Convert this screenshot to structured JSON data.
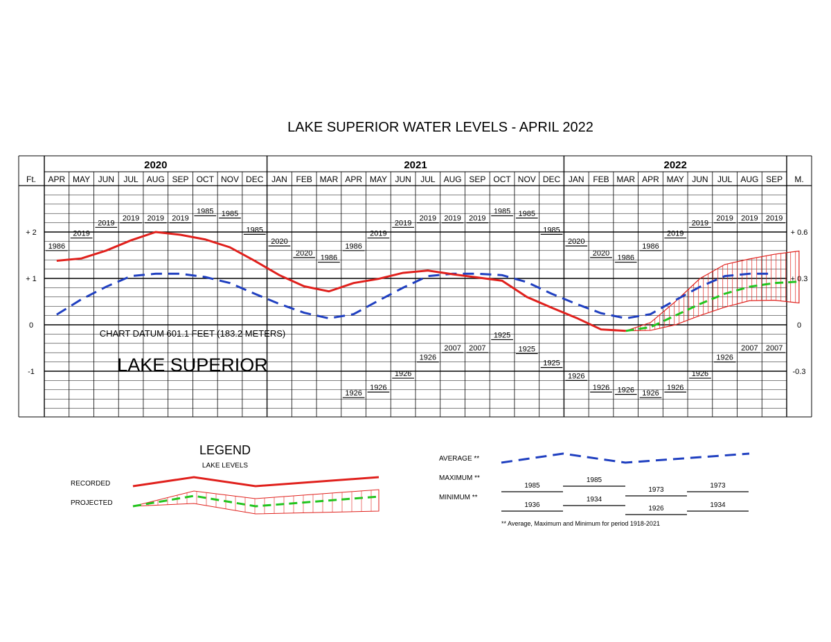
{
  "title": "LAKE SUPERIOR WATER LEVELS - APRIL 2022",
  "chart_data": {
    "type": "line",
    "title": "LAKE SUPERIOR WATER LEVELS - APRIL 2022",
    "years": [
      {
        "label": "2020",
        "months": [
          "APR",
          "MAY",
          "JUN",
          "JUL",
          "AUG",
          "SEP",
          "OCT",
          "NOV",
          "DEC"
        ]
      },
      {
        "label": "2021",
        "months": [
          "JAN",
          "FEB",
          "MAR",
          "APR",
          "MAY",
          "JUN",
          "JUL",
          "AUG",
          "SEP",
          "OCT",
          "NOV",
          "DEC"
        ]
      },
      {
        "label": "2022",
        "months": [
          "JAN",
          "FEB",
          "MAR",
          "APR",
          "MAY",
          "JUN",
          "JUL",
          "AUG",
          "SEP"
        ]
      }
    ],
    "left_axis_label": "Ft.",
    "right_axis_label": "M.",
    "left_ticks": [
      {
        "value": 2,
        "label": "+ 2"
      },
      {
        "value": 1,
        "label": "+ 1"
      },
      {
        "value": 0,
        "label": "0"
      },
      {
        "value": -1,
        "label": "-1"
      }
    ],
    "right_ticks": [
      {
        "value": 2,
        "label": "+ 0.6"
      },
      {
        "value": 1,
        "label": "+ 0.3"
      },
      {
        "value": 0,
        "label": "0"
      },
      {
        "value": -1,
        "label": "-0.3"
      }
    ],
    "ylim": [
      -2,
      2.9
    ],
    "grid": true,
    "datum_note": "CHART DATUM  601.1 FEET (183.2 METERS)",
    "lake_label": "LAKE SUPERIOR",
    "series": [
      {
        "name": "RECORDED",
        "color": "#e0201c",
        "style": "solid",
        "values": [
          1.38,
          1.43,
          1.6,
          1.82,
          2.0,
          1.94,
          1.84,
          1.67,
          1.38,
          1.07,
          0.83,
          0.72,
          0.9,
          0.99,
          1.12,
          1.17,
          1.09,
          1.02,
          0.95,
          0.6,
          0.37,
          0.15,
          -0.1,
          -0.13
        ]
      },
      {
        "name": "AVERAGE **",
        "color": "#1f3fc0",
        "style": "dashed",
        "values": [
          0.22,
          0.55,
          0.82,
          1.05,
          1.1,
          1.1,
          1.03,
          0.9,
          0.67,
          0.45,
          0.26,
          0.14,
          0.23,
          0.52,
          0.8,
          1.05,
          1.1,
          1.1,
          1.07,
          0.92,
          0.67,
          0.45,
          0.25,
          0.14,
          0.23,
          0.53,
          0.82,
          1.05,
          1.1,
          1.1
        ]
      },
      {
        "name": "PROJECTED",
        "color": "#22c41e",
        "style": "dashed",
        "values": [
          null,
          null,
          null,
          null,
          null,
          null,
          null,
          null,
          null,
          null,
          null,
          null,
          null,
          null,
          null,
          null,
          null,
          null,
          null,
          null,
          null,
          null,
          null,
          -0.13,
          -0.05,
          0.2,
          0.45,
          0.67,
          0.82,
          0.9,
          0.93
        ]
      },
      {
        "name": "PROJECTED RANGE (upper)",
        "color": "#e0201c",
        "values": [
          null,
          null,
          null,
          null,
          null,
          null,
          null,
          null,
          null,
          null,
          null,
          null,
          null,
          null,
          null,
          null,
          null,
          null,
          null,
          null,
          null,
          null,
          null,
          -0.13,
          0.05,
          0.5,
          1.0,
          1.3,
          1.42,
          1.52,
          1.59
        ]
      },
      {
        "name": "PROJECTED RANGE (lower)",
        "color": "#e0201c",
        "values": [
          null,
          null,
          null,
          null,
          null,
          null,
          null,
          null,
          null,
          null,
          null,
          null,
          null,
          null,
          null,
          null,
          null,
          null,
          null,
          null,
          null,
          null,
          null,
          -0.13,
          -0.12,
          0.0,
          0.2,
          0.38,
          0.52,
          0.53,
          0.47
        ]
      }
    ],
    "max_records": [
      {
        "month_index": 0,
        "value": 1.6,
        "year": "1986"
      },
      {
        "month_index": 1,
        "value": 1.87,
        "year": "2019"
      },
      {
        "month_index": 2,
        "value": 2.1,
        "year": "2019"
      },
      {
        "month_index": 3,
        "value": 2.2,
        "year": "2019"
      },
      {
        "month_index": 4,
        "value": 2.2,
        "year": "2019"
      },
      {
        "month_index": 5,
        "value": 2.2,
        "year": "2019"
      },
      {
        "month_index": 6,
        "value": 2.35,
        "year": "1985"
      },
      {
        "month_index": 7,
        "value": 2.3,
        "year": "1985"
      },
      {
        "month_index": 8,
        "value": 1.95,
        "year": "1985"
      },
      {
        "month_index": 9,
        "value": 1.7,
        "year": "2020"
      },
      {
        "month_index": 10,
        "value": 1.45,
        "year": "2020"
      },
      {
        "month_index": 11,
        "value": 1.35,
        "year": "1986"
      },
      {
        "month_index": 12,
        "value": 1.6,
        "year": "1986"
      },
      {
        "month_index": 13,
        "value": 1.87,
        "year": "2019"
      },
      {
        "month_index": 14,
        "value": 2.1,
        "year": "2019"
      },
      {
        "month_index": 15,
        "value": 2.2,
        "year": "2019"
      },
      {
        "month_index": 16,
        "value": 2.2,
        "year": "2019"
      },
      {
        "month_index": 17,
        "value": 2.2,
        "year": "2019"
      },
      {
        "month_index": 18,
        "value": 2.35,
        "year": "1985"
      },
      {
        "month_index": 19,
        "value": 2.3,
        "year": "1985"
      },
      {
        "month_index": 20,
        "value": 1.95,
        "year": "1985"
      },
      {
        "month_index": 21,
        "value": 1.7,
        "year": "2020"
      },
      {
        "month_index": 22,
        "value": 1.45,
        "year": "2020"
      },
      {
        "month_index": 23,
        "value": 1.35,
        "year": "1986"
      },
      {
        "month_index": 24,
        "value": 1.6,
        "year": "1986"
      },
      {
        "month_index": 25,
        "value": 1.87,
        "year": "2019"
      },
      {
        "month_index": 26,
        "value": 2.1,
        "year": "2019"
      },
      {
        "month_index": 27,
        "value": 2.2,
        "year": "2019"
      },
      {
        "month_index": 28,
        "value": 2.2,
        "year": "2019"
      },
      {
        "month_index": 29,
        "value": 2.2,
        "year": "2019"
      }
    ],
    "min_records": [
      {
        "month_index": 12,
        "value": -1.57,
        "year": "1926"
      },
      {
        "month_index": 13,
        "value": -1.45,
        "year": "1926"
      },
      {
        "month_index": 14,
        "value": -1.15,
        "year": "1926"
      },
      {
        "month_index": 15,
        "value": -0.8,
        "year": "1926"
      },
      {
        "month_index": 16,
        "value": -0.6,
        "year": "2007"
      },
      {
        "month_index": 17,
        "value": -0.6,
        "year": "2007"
      },
      {
        "month_index": 18,
        "value": -0.32,
        "year": "1925"
      },
      {
        "month_index": 19,
        "value": -0.62,
        "year": "1925"
      },
      {
        "month_index": 20,
        "value": -0.92,
        "year": "1925"
      },
      {
        "month_index": 21,
        "value": -1.2,
        "year": "1926"
      },
      {
        "month_index": 22,
        "value": -1.45,
        "year": "1926"
      },
      {
        "month_index": 23,
        "value": -1.5,
        "year": "1926"
      },
      {
        "month_index": 24,
        "value": -1.57,
        "year": "1926"
      },
      {
        "month_index": 25,
        "value": -1.45,
        "year": "1926"
      },
      {
        "month_index": 26,
        "value": -1.15,
        "year": "1926"
      },
      {
        "month_index": 27,
        "value": -0.8,
        "year": "1926"
      },
      {
        "month_index": 28,
        "value": -0.6,
        "year": "2007"
      },
      {
        "month_index": 29,
        "value": -0.6,
        "year": "2007"
      }
    ]
  },
  "legend": {
    "heading": "LEGEND",
    "subheading": "LAKE LEVELS",
    "recorded_label": "RECORDED",
    "projected_label": "PROJECTED",
    "average_label": "AVERAGE **",
    "maximum_label": "MAXIMUM **",
    "minimum_label": "MINIMUM **",
    "maximum_years": [
      "1985",
      "1985",
      "1973",
      "1973"
    ],
    "minimum_years": [
      "1936",
      "1934",
      "1926",
      "1934"
    ],
    "footnote": "** Average, Maximum and Minimum for period 1918-2021"
  }
}
